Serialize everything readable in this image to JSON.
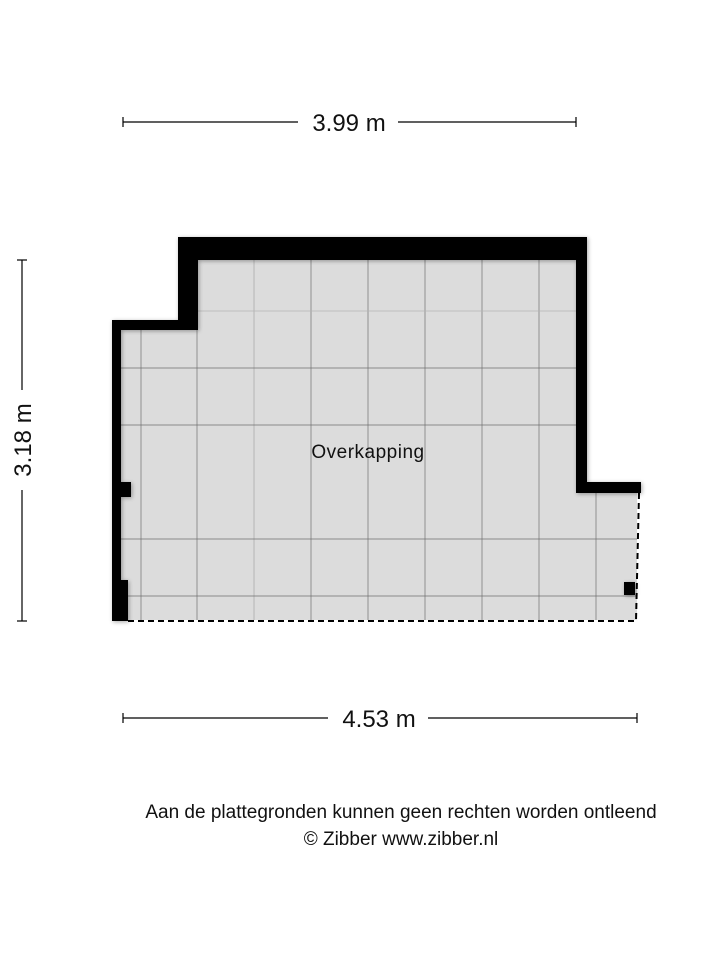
{
  "dimensions": {
    "top_width": "3.99 m",
    "left_height": "3.18 m",
    "bottom_width": "4.53 m"
  },
  "room": {
    "label": "Overkapping",
    "floor_color": "#dcdcdc",
    "wall_color": "#000000"
  },
  "footer": {
    "disclaimer": "Aan de plattegronden kunnen geen rechten worden ontleend",
    "copyright": "© Zibber www.zibber.nl"
  }
}
